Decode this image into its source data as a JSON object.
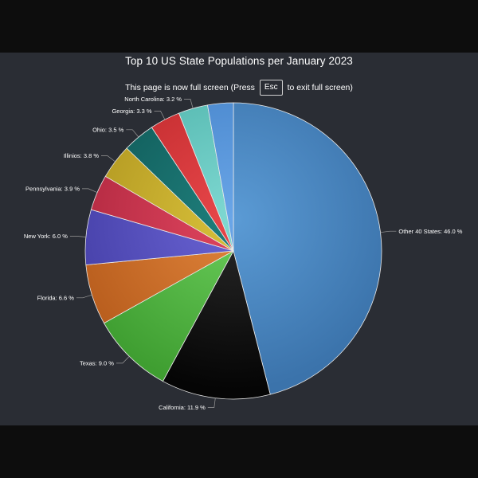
{
  "chart_data": {
    "type": "pie",
    "title": "Top 10 US State Populations per January 2023",
    "slices": [
      {
        "label": "Other 40 States",
        "value": 46.0,
        "label_text": "Other 40 States: 46.0 %",
        "color": "#5b9bd5",
        "color_dark": "#3b73ab"
      },
      {
        "label": "California",
        "value": 11.9,
        "label_text": "California: 11.9 %",
        "color": "#2a2a2a",
        "color_dark": "#050505"
      },
      {
        "label": "Texas",
        "value": 9.0,
        "label_text": "Texas: 9.0 %",
        "color": "#6acd5a",
        "color_dark": "#3f9e31"
      },
      {
        "label": "Florida",
        "value": 6.6,
        "label_text": "Florida: 6.6 %",
        "color": "#e0843b",
        "color_dark": "#b85d1d"
      },
      {
        "label": "New York",
        "value": 6.0,
        "label_text": "New York: 6.0 %",
        "color": "#6a64d4",
        "color_dark": "#4640a8"
      },
      {
        "label": "Pennsylvania",
        "value": 3.9,
        "label_text": "Pennsylvania: 3.9 %",
        "color": "#e0455f",
        "color_dark": "#b0283f"
      },
      {
        "label": "Illinios",
        "value": 3.8,
        "label_text": "Illinios: 3.8 %",
        "color": "#d8c03a",
        "color_dark": "#b09620"
      },
      {
        "label": "Ohio",
        "value": 3.5,
        "label_text": "Ohio: 3.5 %",
        "color": "#1f7f7c",
        "color_dark": "#105a58"
      },
      {
        "label": "Georgia",
        "value": 3.3,
        "label_text": "Georgia: 3.3 %",
        "color": "#e8474a",
        "color_dark": "#bf2a2d"
      },
      {
        "label": "North Carolina",
        "value": 3.2,
        "label_text": "North Carolina: 3.2 %",
        "color": "#7fd9d2",
        "color_dark": "#4fb3ab"
      },
      {
        "label": "",
        "value": 2.8,
        "label_text": "",
        "color": "#6aa6e8",
        "color_dark": "#4482c8"
      }
    ]
  },
  "fullscreen_notice": {
    "prefix": "This page is now full screen (Press",
    "key": "Esc",
    "suffix": "to exit full screen)"
  }
}
